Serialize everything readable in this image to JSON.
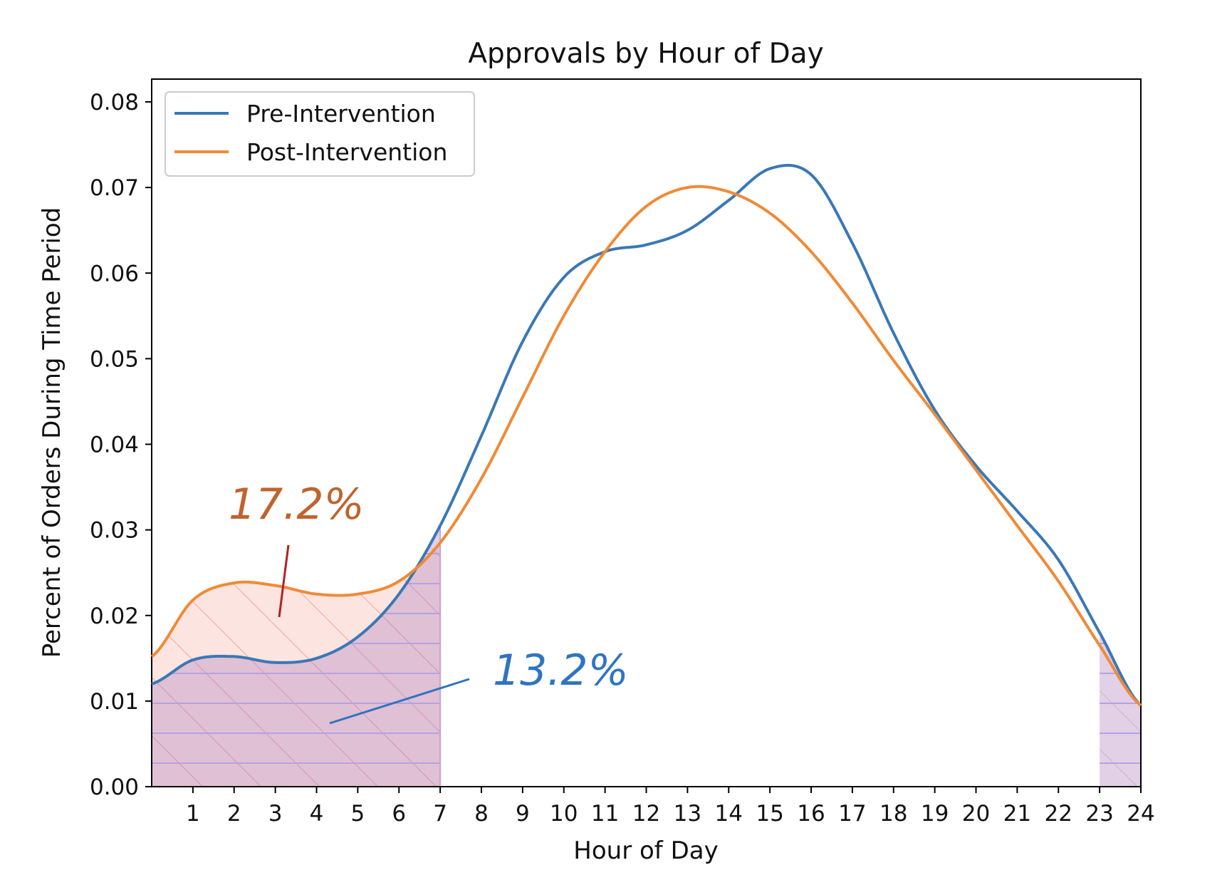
{
  "chart_data": {
    "type": "line",
    "title": "Approvals by Hour of Day",
    "xlabel": "Hour of Day",
    "ylabel": "Percent of Orders During Time Period",
    "xlim": [
      0,
      24
    ],
    "ylim": [
      0,
      0.08
    ],
    "x_ticks": [
      1,
      2,
      3,
      4,
      5,
      6,
      7,
      8,
      9,
      10,
      11,
      12,
      13,
      14,
      15,
      16,
      17,
      18,
      19,
      20,
      21,
      22,
      23,
      24
    ],
    "y_ticks": [
      "0.00",
      "0.01",
      "0.02",
      "0.03",
      "0.04",
      "0.05",
      "0.06",
      "0.07",
      "0.08"
    ],
    "grid": false,
    "legend_position": "top-left",
    "series": [
      {
        "name": "Pre-Intervention",
        "color": "#3a78b5",
        "x": [
          0,
          1,
          2,
          3,
          4,
          5,
          6,
          7,
          8,
          9,
          10,
          11,
          12,
          13,
          14,
          15,
          16,
          17,
          18,
          19,
          20,
          21,
          22,
          23,
          24
        ],
        "y": [
          0.012,
          0.0148,
          0.0152,
          0.0145,
          0.015,
          0.0175,
          0.0225,
          0.0305,
          0.041,
          0.052,
          0.0595,
          0.0625,
          0.0633,
          0.065,
          0.0685,
          0.0722,
          0.0715,
          0.0635,
          0.053,
          0.044,
          0.0375,
          0.0322,
          0.0265,
          0.018,
          0.0095
        ]
      },
      {
        "name": "Post-Intervention",
        "color": "#f08a36",
        "x": [
          0,
          1,
          2,
          3,
          4,
          5,
          6,
          7,
          8,
          9,
          10,
          11,
          12,
          13,
          14,
          15,
          16,
          17,
          18,
          19,
          20,
          21,
          22,
          23,
          24
        ],
        "y": [
          0.0152,
          0.0218,
          0.0238,
          0.0235,
          0.0225,
          0.0225,
          0.024,
          0.0285,
          0.036,
          0.0455,
          0.055,
          0.0625,
          0.0678,
          0.07,
          0.0695,
          0.067,
          0.0625,
          0.0565,
          0.0498,
          0.0435,
          0.037,
          0.0305,
          0.024,
          0.0165,
          0.0095
        ]
      }
    ],
    "shaded_regions": [
      {
        "from": 0,
        "to": 7,
        "series": "Post-Intervention",
        "color": "#f4a79a",
        "hatch": "diagonal"
      },
      {
        "from": 0,
        "to": 7,
        "series": "Pre-Intervention",
        "color": "#b98fc6",
        "hatch": "horizontal"
      },
      {
        "from": 23,
        "to": 24,
        "series": "Pre-Intervention",
        "color": "#b98fc6",
        "hatch": "horizontal"
      }
    ],
    "annotations": [
      {
        "text": "17.2%",
        "color": "#c0632e",
        "pointer_color": "#b22222",
        "x": 3.4,
        "y": 0.031
      },
      {
        "text": "13.2%",
        "color": "#2f74c0",
        "pointer_color": "#2f74c0",
        "x": 8.3,
        "y": 0.0135
      }
    ]
  }
}
